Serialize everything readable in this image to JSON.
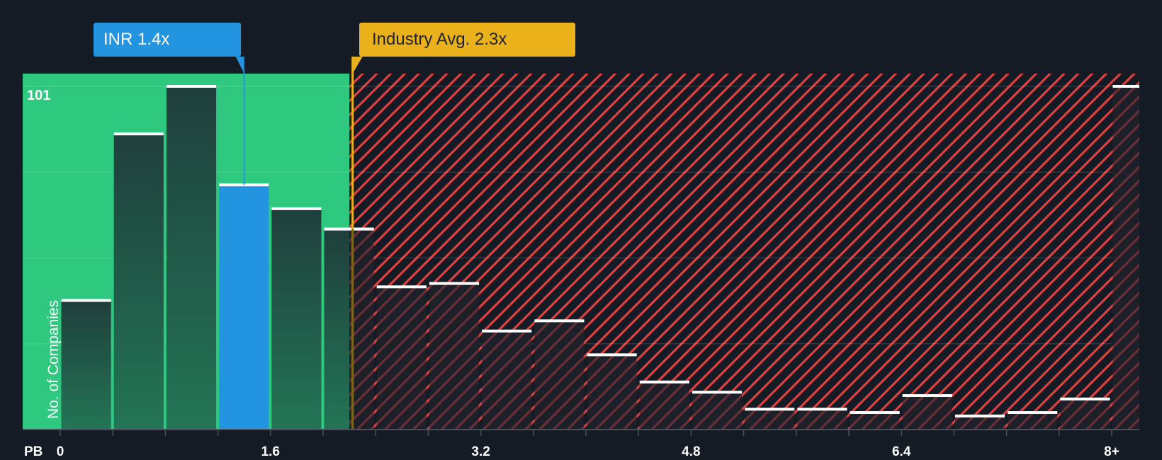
{
  "chart_data": {
    "type": "bar",
    "title": "",
    "xlabel": "PB",
    "ylabel": "No. of Companies",
    "y_max_label": "101",
    "ylim": [
      0,
      101
    ],
    "x_tick_labels": [
      "0",
      "1.6",
      "3.2",
      "4.8",
      "6.4",
      "8+"
    ],
    "bin_width": 0.4,
    "categories": [
      "0-0.4",
      "0.4-0.8",
      "0.8-1.2",
      "1.2-1.6",
      "1.6-2.0",
      "2.0-2.4",
      "2.4-2.8",
      "2.8-3.2",
      "3.2-3.6",
      "3.6-4.0",
      "4.0-4.4",
      "4.4-4.8",
      "4.8-5.2",
      "5.2-5.6",
      "5.6-6.0",
      "6.0-6.4",
      "6.4-6.8",
      "6.8-7.2",
      "7.2-7.6",
      "7.6-8.0",
      "8+"
    ],
    "values": [
      38,
      87,
      101,
      72,
      65,
      59,
      42,
      43,
      29,
      32,
      22,
      14,
      11,
      6,
      6,
      5,
      10,
      4,
      5,
      9,
      101
    ],
    "highlight_index": 3,
    "annotations": [
      {
        "label": "INR 1.4x",
        "x": 1.4,
        "color": "#2394df"
      },
      {
        "label": "Industry Avg. 2.3x",
        "x": 2.3,
        "color": "#ebb11a"
      }
    ],
    "shaded_regions": [
      {
        "from": 0,
        "to": 2.2,
        "color": "#2ec97f",
        "meaning": "undervalued"
      },
      {
        "from": 2.2,
        "to": 8.2,
        "color": "#e0403f",
        "pattern": "hatched",
        "meaning": "overvalued"
      }
    ],
    "grid": true,
    "legend": "none"
  },
  "labels": {
    "company": "INR 1.4x",
    "industry": "Industry Avg. 2.3x",
    "ylabel": "No. of Companies",
    "ymax": "101",
    "xaxis_prefix": "PB"
  },
  "colors": {
    "background": "#151b24",
    "green_zone": "#2ec97f",
    "red_hatch": "#e0403f",
    "bar_dark": "#21473f",
    "highlight_bar": "#2394df",
    "industry_line": "#ebb11a",
    "bar_top": "#ffffff"
  }
}
